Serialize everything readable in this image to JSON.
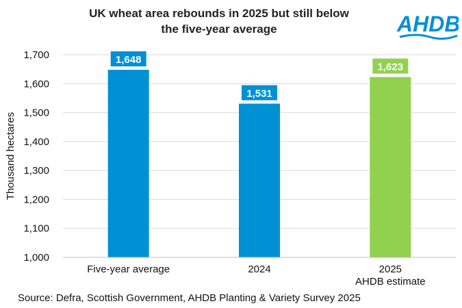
{
  "chart_data": {
    "type": "bar",
    "title": "UK wheat area rebounds in 2025 but still below the five-year average",
    "title_lines": [
      "UK wheat area rebounds in 2025 but still below",
      "the five-year average"
    ],
    "ylabel": "Thousand hectares",
    "ylim": [
      1000,
      1700
    ],
    "yticks": [
      1000,
      1100,
      1200,
      1300,
      1400,
      1500,
      1600,
      1700
    ],
    "ytick_labels": [
      "1,000",
      "1,100",
      "1,200",
      "1,300",
      "1,400",
      "1,500",
      "1,600",
      "1,700"
    ],
    "grid": true,
    "categories": [
      {
        "lines": [
          "Five-year average"
        ]
      },
      {
        "lines": [
          "2024"
        ]
      },
      {
        "lines": [
          "2025",
          "AHDB estimate"
        ]
      }
    ],
    "values": [
      1648,
      1531,
      1623
    ],
    "data_labels": [
      "1,648",
      "1,531",
      "1,623"
    ],
    "colors": [
      "#0090d4",
      "#0090d4",
      "#92d050"
    ]
  },
  "logo": {
    "text": "AHDB",
    "color": "#0090d4"
  },
  "source": "Source: Defra, Scottish Government, AHDB Planting & Variety Survey 2025"
}
